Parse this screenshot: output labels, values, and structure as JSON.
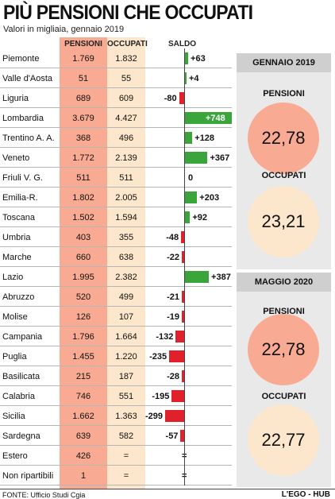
{
  "header": {
    "title": "PIÙ PENSIONI CHE OCCUPATI",
    "subtitle": "Valori in migliaia, gennaio 2019"
  },
  "columns": {
    "pensioni": "PENSIONI",
    "occupati": "OCCUPATI",
    "saldo": "SALDO"
  },
  "colors": {
    "positive": "#3aa53a",
    "negative": "#e0202a",
    "pensioni_bg": "#f8ab92",
    "occupati_bg": "#fde7cc",
    "panel_bg": "#e9e9e9",
    "panel_head": "#cfcfcf"
  },
  "chart_data": {
    "type": "table",
    "rows": [
      {
        "region": "Piemonte",
        "pensioni": "1.769",
        "occupati": "1.832",
        "saldo": 63,
        "saldo_label": "+63"
      },
      {
        "region": "Valle d'Aosta",
        "pensioni": "51",
        "occupati": "55",
        "saldo": 4,
        "saldo_label": "+4"
      },
      {
        "region": "Liguria",
        "pensioni": "689",
        "occupati": "609",
        "saldo": -80,
        "saldo_label": "-80"
      },
      {
        "region": "Lombardia",
        "pensioni": "3.679",
        "occupati": "4.427",
        "saldo": 748,
        "saldo_label": "+748"
      },
      {
        "region": "Trentino A. A.",
        "pensioni": "368",
        "occupati": "496",
        "saldo": 128,
        "saldo_label": "+128"
      },
      {
        "region": "Veneto",
        "pensioni": "1.772",
        "occupati": "2.139",
        "saldo": 367,
        "saldo_label": "+367"
      },
      {
        "region": "Friuli V. G.",
        "pensioni": "511",
        "occupati": "511",
        "saldo": 0,
        "saldo_label": "0"
      },
      {
        "region": "Emilia-R.",
        "pensioni": "1.802",
        "occupati": "2.005",
        "saldo": 203,
        "saldo_label": "+203"
      },
      {
        "region": "Toscana",
        "pensioni": "1.502",
        "occupati": "1.594",
        "saldo": 92,
        "saldo_label": "+92"
      },
      {
        "region": "Umbria",
        "pensioni": "403",
        "occupati": "355",
        "saldo": -48,
        "saldo_label": "-48"
      },
      {
        "region": "Marche",
        "pensioni": "660",
        "occupati": "638",
        "saldo": -22,
        "saldo_label": "-22"
      },
      {
        "region": "Lazio",
        "pensioni": "1.995",
        "occupati": "2.382",
        "saldo": 387,
        "saldo_label": "+387"
      },
      {
        "region": "Abruzzo",
        "pensioni": "520",
        "occupati": "499",
        "saldo": -21,
        "saldo_label": "-21"
      },
      {
        "region": "Molise",
        "pensioni": "126",
        "occupati": "107",
        "saldo": -19,
        "saldo_label": "-19"
      },
      {
        "region": "Campania",
        "pensioni": "1.796",
        "occupati": "1.664",
        "saldo": -132,
        "saldo_label": "-132"
      },
      {
        "region": "Puglia",
        "pensioni": "1.455",
        "occupati": "1.220",
        "saldo": -235,
        "saldo_label": "-235"
      },
      {
        "region": "Basilicata",
        "pensioni": "215",
        "occupati": "187",
        "saldo": -28,
        "saldo_label": "-28"
      },
      {
        "region": "Calabria",
        "pensioni": "746",
        "occupati": "551",
        "saldo": -195,
        "saldo_label": "-195"
      },
      {
        "region": "Sicilia",
        "pensioni": "1.662",
        "occupati": "1.363",
        "saldo": -299,
        "saldo_label": "-299"
      },
      {
        "region": "Sardegna",
        "pensioni": "639",
        "occupati": "582",
        "saldo": -57,
        "saldo_label": "-57"
      },
      {
        "region": "Estero",
        "pensioni": "426",
        "occupati": "=",
        "saldo": null,
        "saldo_label": "="
      },
      {
        "region": "Non ripartibili",
        "pensioni": "1",
        "occupati": "=",
        "saldo": null,
        "saldo_label": "="
      }
    ]
  },
  "panels": [
    {
      "title": "GENNAIO 2019",
      "pensioni_label": "PENSIONI",
      "pensioni_value": "22,78",
      "occupati_label": "OCCUPATI",
      "occupati_value": "23,21"
    },
    {
      "title": "MAGGIO 2020",
      "pensioni_label": "PENSIONI",
      "pensioni_value": "22,78",
      "occupati_label": "OCCUPATI",
      "occupati_value": "22,77"
    }
  ],
  "footer": {
    "source": "FONTE: Ufficio Studi Cgia",
    "brand": "L'EGO - HUB"
  }
}
